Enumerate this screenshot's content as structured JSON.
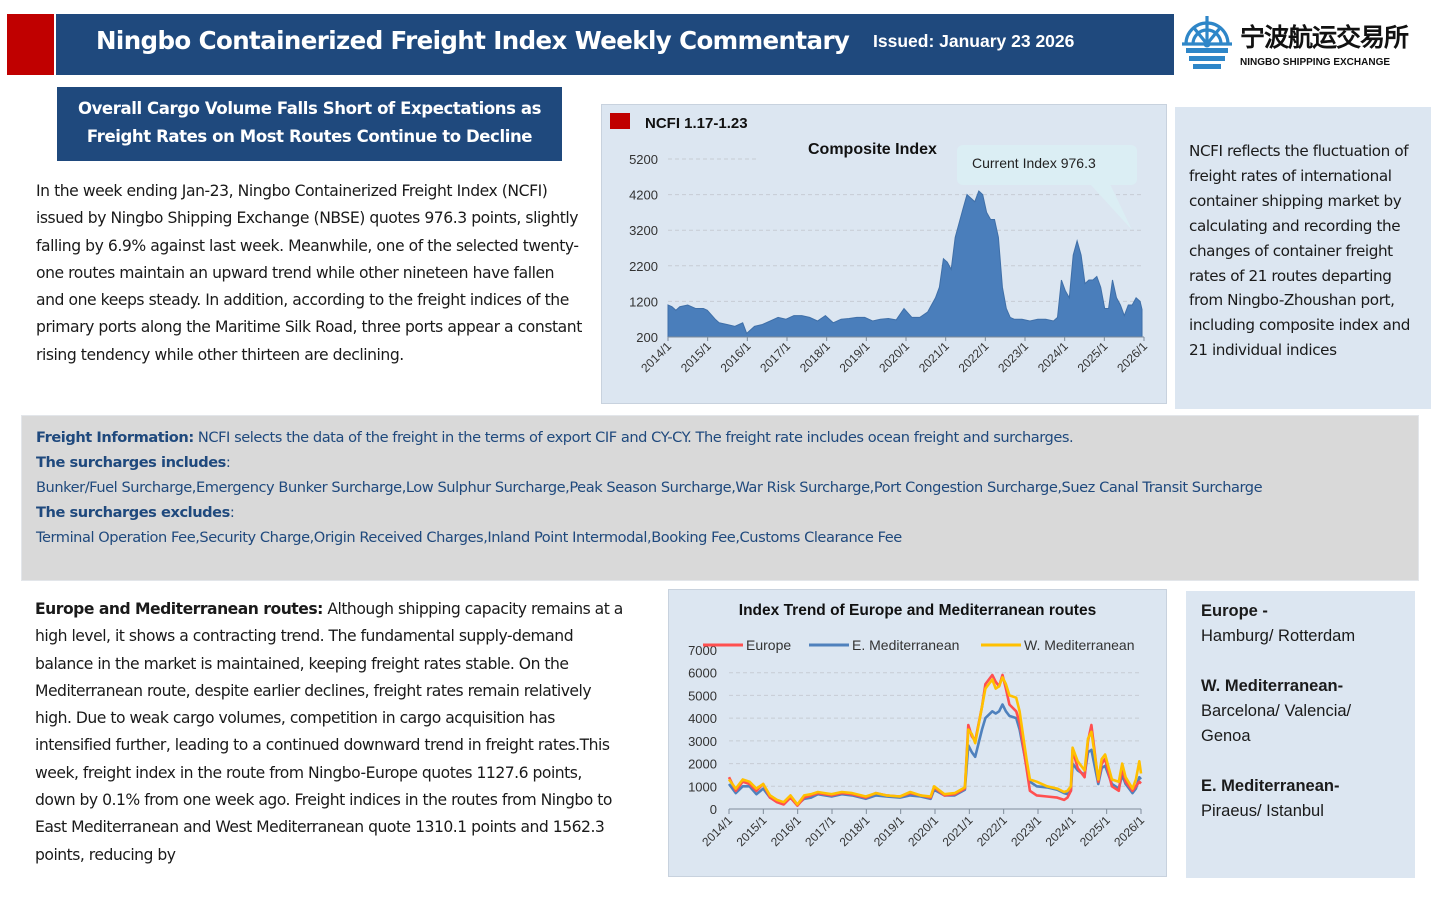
{
  "header": {
    "title": "Ningbo Containerized Freight Index Weekly Commentary",
    "issued": "Issued: January 23 2026",
    "logo_cn": "宁波航运交易所",
    "logo_en": "NINGBO SHIPPING EXCHANGE",
    "logo_icon": "ship-wheel-icon",
    "brand_color": "#1f497d",
    "accent_color": "#c00000"
  },
  "headline": {
    "line1": "Overall Cargo Volume Falls Short of Expectations as",
    "line2": "Freight Rates on Most Routes Continue to Decline"
  },
  "intro": "In the week ending Jan-23, Ningbo Containerized Freight Index (NCFI) issued by Ningbo Shipping Exchange (NBSE) quotes 976.3 points, slightly falling by 6.9% against last week. Meanwhile, one of the selected twenty-one routes maintain an upward trend while other nineteen have fallen and one keeps steady. In addition, according to the freight indices of the primary ports along the Maritime Silk Road, three ports appear a constant rising tendency while other thirteen are declining.",
  "side_note": "NCFI reflects the fluctuation of freight rates of international container shipping market by calculating and recording the changes of container freight rates of 21 routes departing from Ningbo-Zhoushan port, including composite index and 21 individual indices",
  "freight_info": {
    "label": "Freight Information:",
    "text": " NCFI selects the data of the freight in the terms of export CIF and CY-CY. The freight rate includes ocean freight and surcharges.",
    "includes_label": "The surcharges includes",
    "includes_text": "Bunker/Fuel Surcharge,Emergency Bunker Surcharge,Low Sulphur Surcharge,Peak Season Surcharge,War Risk Surcharge,Port Congestion Surcharge,Suez Canal Transit Surcharge",
    "excludes_label": "The surcharges excludes",
    "excludes_text": "Terminal Operation Fee,Security Charge,Origin Received Charges,Inland Point Intermodal,Booking Fee,Customs Clearance Fee",
    "colon": ":"
  },
  "europe_section": {
    "label": "Europe and Mediterranean routes:",
    "text": " Although shipping capacity remains at a high level, it shows a contracting trend. The fundamental supply-demand balance in the market is maintained, keeping freight rates stable. On the Mediterranean route, despite earlier declines, freight rates remain relatively high. Due to weak cargo volumes, competition in cargo acquisition has intensified further, leading to a continued downward trend in freight rates.This week, freight index in the route from Ningbo-Europe quotes 1127.6 points, down by 0.1% from one week ago. Freight indices in the routes from Ningbo to East Mediterranean and West Mediterranean quote 1310.1 points and 1562.3 points, reducing by"
  },
  "route_legend": [
    {
      "name": "Europe -",
      "ports": "Hamburg/ Rotterdam"
    },
    {
      "name": "W. Mediterranean-",
      "ports": "Barcelona/ Valencia/ Genoa"
    },
    {
      "name": "E. Mediterranean-",
      "ports": "Piraeus/ Istanbul"
    }
  ],
  "chart_data": [
    {
      "type": "area",
      "label": "NCFI 1.17-1.23",
      "title": "Composite Index",
      "annotation": "Current Index 976.3",
      "xlabel": "",
      "ylabel": "",
      "ylim": [
        200,
        5200
      ],
      "yticks": [
        "5200",
        "4200",
        "3200",
        "2200",
        "1200",
        "200"
      ],
      "ytick_values": [
        5200,
        4200,
        3200,
        2200,
        1200,
        200
      ],
      "xticks": [
        "2014/1",
        "2015/1",
        "2016/1",
        "2017/1",
        "2018/1",
        "2019/1",
        "2020/1",
        "2021/1",
        "2022/1",
        "2023/1",
        "2024/1",
        "2025/1",
        "2026/1"
      ],
      "xlim": [
        2014.0,
        2026.1
      ],
      "grid": true,
      "color": "#4a7ebb",
      "series": [
        {
          "name": "Composite Index",
          "x": [
            2014.0,
            2014.1,
            2014.2,
            2014.3,
            2014.5,
            2014.7,
            2014.9,
            2015.0,
            2015.2,
            2015.3,
            2015.5,
            2015.7,
            2015.9,
            2016.0,
            2016.2,
            2016.4,
            2016.6,
            2016.8,
            2017.0,
            2017.2,
            2017.4,
            2017.6,
            2017.8,
            2018.0,
            2018.2,
            2018.4,
            2018.6,
            2018.8,
            2019.0,
            2019.2,
            2019.4,
            2019.6,
            2019.8,
            2020.0,
            2020.2,
            2020.4,
            2020.6,
            2020.8,
            2020.9,
            2021.0,
            2021.1,
            2021.2,
            2021.3,
            2021.5,
            2021.6,
            2021.8,
            2021.9,
            2022.0,
            2022.1,
            2022.2,
            2022.3,
            2022.4,
            2022.5,
            2022.6,
            2022.7,
            2022.8,
            2022.9,
            2023.0,
            2023.2,
            2023.4,
            2023.6,
            2023.8,
            2023.9,
            2024.0,
            2024.1,
            2024.2,
            2024.3,
            2024.4,
            2024.5,
            2024.6,
            2024.7,
            2024.8,
            2024.9,
            2025.0,
            2025.1,
            2025.2,
            2025.3,
            2025.4,
            2025.5,
            2025.6,
            2025.7,
            2025.8,
            2025.9,
            2026.0,
            2026.05
          ],
          "values": [
            1100,
            1050,
            950,
            1050,
            1100,
            1000,
            1000,
            950,
            700,
            600,
            550,
            500,
            600,
            300,
            500,
            550,
            650,
            750,
            700,
            800,
            800,
            750,
            650,
            800,
            600,
            700,
            720,
            750,
            750,
            650,
            700,
            720,
            680,
            1000,
            750,
            750,
            900,
            1300,
            1600,
            2400,
            2300,
            2100,
            3000,
            3800,
            4200,
            4000,
            4300,
            4200,
            3700,
            3500,
            3500,
            3000,
            1600,
            1000,
            750,
            700,
            700,
            700,
            650,
            700,
            700,
            650,
            750,
            1800,
            1500,
            1300,
            2500,
            2900,
            2500,
            1700,
            1800,
            1800,
            1900,
            1600,
            1000,
            1000,
            1800,
            1300,
            1100,
            800,
            1100,
            1100,
            1300,
            1200,
            976.3
          ]
        }
      ]
    },
    {
      "type": "line",
      "title": "Index Trend of Europe and Mediterranean routes",
      "xlabel": "",
      "ylabel": "",
      "ylim": [
        0,
        7000
      ],
      "yticks": [
        "7000",
        "6000",
        "5000",
        "4000",
        "3000",
        "2000",
        "1000",
        "0"
      ],
      "ytick_values": [
        7000,
        6000,
        5000,
        4000,
        3000,
        2000,
        1000,
        0
      ],
      "xticks": [
        "2014/1",
        "2015/1",
        "2016/1",
        "2017/1",
        "2018/1",
        "2019/1",
        "2020/1",
        "2021/1",
        "2022/1",
        "2023/1",
        "2024/1",
        "2025/1",
        "2026/1"
      ],
      "xlim": [
        2014.0,
        2026.05
      ],
      "grid": true,
      "legend": "top",
      "x": [
        2014.0,
        2014.2,
        2014.4,
        2014.6,
        2014.8,
        2015.0,
        2015.2,
        2015.4,
        2015.6,
        2015.8,
        2016.0,
        2016.2,
        2016.4,
        2016.6,
        2016.8,
        2017.0,
        2017.3,
        2017.6,
        2018.0,
        2018.3,
        2018.6,
        2019.0,
        2019.3,
        2019.6,
        2019.9,
        2020.0,
        2020.3,
        2020.6,
        2020.9,
        2021.0,
        2021.1,
        2021.2,
        2021.4,
        2021.5,
        2021.7,
        2021.8,
        2021.9,
        2022.0,
        2022.1,
        2022.2,
        2022.4,
        2022.5,
        2022.7,
        2022.8,
        2023.0,
        2023.3,
        2023.6,
        2023.8,
        2023.9,
        2024.0,
        2024.05,
        2024.2,
        2024.4,
        2024.5,
        2024.6,
        2024.8,
        2024.9,
        2025.0,
        2025.2,
        2025.4,
        2025.5,
        2025.6,
        2025.8,
        2025.9,
        2026.0,
        2026.05
      ],
      "series": [
        {
          "name": "Europe",
          "color": "#ff5050",
          "values": [
            1400,
            800,
            1200,
            1100,
            800,
            1100,
            500,
            300,
            200,
            500,
            150,
            500,
            600,
            700,
            650,
            600,
            700,
            650,
            500,
            700,
            600,
            550,
            700,
            600,
            500,
            950,
            600,
            650,
            900,
            3700,
            3200,
            3000,
            4500,
            5500,
            5900,
            5600,
            5400,
            5900,
            5300,
            4600,
            4300,
            3800,
            1800,
            800,
            600,
            550,
            500,
            400,
            500,
            800,
            2600,
            1800,
            1400,
            3000,
            3700,
            1200,
            2000,
            2200,
            1000,
            800,
            1800,
            1200,
            800,
            1000,
            1200,
            1127.6
          ]
        },
        {
          "name": "E. Mediterranean",
          "color": "#4f81bd",
          "values": [
            1100,
            700,
            1000,
            1000,
            650,
            900,
            500,
            350,
            250,
            500,
            200,
            450,
            500,
            650,
            600,
            550,
            650,
            600,
            450,
            600,
            550,
            500,
            600,
            550,
            450,
            850,
            600,
            600,
            850,
            2800,
            2500,
            2300,
            3500,
            4000,
            4300,
            4200,
            4300,
            4600,
            4300,
            4100,
            4000,
            3500,
            1900,
            1200,
            1000,
            950,
            850,
            700,
            650,
            800,
            2000,
            1700,
            1500,
            2500,
            2600,
            1100,
            1800,
            1900,
            1100,
            900,
            1500,
            1100,
            700,
            900,
            1400,
            1310.1
          ]
        },
        {
          "name": "W. Mediterranean",
          "color": "#ffc000",
          "values": [
            1300,
            900,
            1300,
            1200,
            900,
            1100,
            600,
            400,
            300,
            600,
            200,
            600,
            650,
            750,
            700,
            650,
            750,
            700,
            550,
            700,
            600,
            550,
            750,
            600,
            550,
            1000,
            650,
            700,
            950,
            3500,
            3300,
            2900,
            4500,
            5300,
            5700,
            5300,
            5400,
            5800,
            5500,
            5000,
            4900,
            4300,
            2200,
            1300,
            1200,
            1000,
            900,
            750,
            800,
            1000,
            2700,
            2100,
            1700,
            3100,
            3400,
            1300,
            2200,
            2400,
            1300,
            1200,
            2000,
            1400,
            900,
            1300,
            2100,
            1562.3
          ]
        }
      ]
    }
  ]
}
